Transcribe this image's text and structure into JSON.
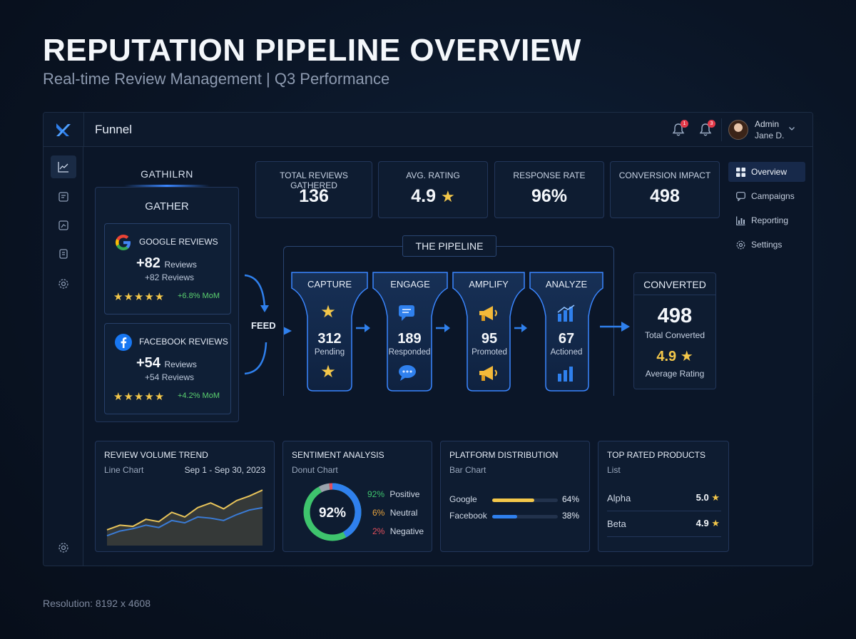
{
  "hero": {
    "title": "REPUTATION PIPELINE OVERVIEW",
    "subtitle": "Real-time Review Management | Q3 Performance"
  },
  "footer": {
    "resolution": "Resolution: 8192 x 4608"
  },
  "topbar": {
    "title": "Funnel",
    "notifications": [
      {
        "badge": "1"
      },
      {
        "badge": "3"
      }
    ],
    "user": {
      "name": "Admin",
      "subname": "Jane D."
    }
  },
  "kpis": [
    {
      "label": "TOTAL REVIEWS GATHERED",
      "value": "136"
    },
    {
      "label": "AVG. RATING",
      "value": "4.9"
    },
    {
      "label": "RESPONSE RATE",
      "value": "96%"
    },
    {
      "label": "CONVERSION IMPACT",
      "value": "498"
    }
  ],
  "gather": {
    "heading": "GATHILRN",
    "title": "GATHER",
    "sources": [
      {
        "name": "GOOGLE REVIEWS",
        "big": "+82",
        "big_unit": "Reviews",
        "small": "+82 Reviews",
        "stars": "★★★★★",
        "mom": "+6.8% MoM"
      },
      {
        "name": "FACEBOOK REVIEWS",
        "big": "+54",
        "big_unit": "Reviews",
        "small": "+54 Reviews",
        "stars": "★★★★★",
        "mom": "+4.2% MoM"
      }
    ],
    "feed_label": "FEED"
  },
  "pipeline": {
    "title": "THE PIPELINE",
    "stages": [
      {
        "label": "CAPTURE",
        "value": "312",
        "sub": "Pending",
        "icon": "star-icon"
      },
      {
        "label": "ENGAGE",
        "value": "189",
        "sub": "Responded",
        "icon": "chat-icon"
      },
      {
        "label": "AMPLIFY",
        "value": "95",
        "sub": "Promoted",
        "icon": "megaphone-icon"
      },
      {
        "label": "ANALYZE",
        "value": "67",
        "sub": "Actioned",
        "icon": "bar-chart-icon"
      }
    ]
  },
  "converted": {
    "title": "CONVERTED",
    "value": "498",
    "value_label": "Total Converted",
    "rating": "4.9",
    "rating_label": "Average Rating"
  },
  "right_nav": [
    {
      "label": "Overview",
      "icon": "grid-icon",
      "active": true
    },
    {
      "label": "Campaigns",
      "icon": "message-icon",
      "active": false
    },
    {
      "label": "Reporting",
      "icon": "chart-icon",
      "active": false
    },
    {
      "label": "Settings",
      "icon": "gear-icon",
      "active": false
    }
  ],
  "trend": {
    "title": "REVIEW VOLUME TREND",
    "subtitle": "Line Chart",
    "date_range": "Sep 1 - Sep 30, 2023"
  },
  "sentiment": {
    "title": "SENTIMENT ANALYSIS",
    "subtitle": "Donut Chart",
    "center_label": "92%",
    "items": [
      {
        "pct": "92%",
        "label": "Positive",
        "value": 92,
        "color": "#3ec46d"
      },
      {
        "pct": "6%",
        "label": "Neutral",
        "value": 6,
        "color": "#e8a33d"
      },
      {
        "pct": "2%",
        "label": "Negative",
        "value": 2,
        "color": "#e2505c"
      }
    ]
  },
  "platform": {
    "title": "PLATFORM DISTRIBUTION",
    "subtitle": "Bar Chart",
    "rows": [
      {
        "name": "Google",
        "pct": "64%",
        "value": 64,
        "color": "#f3c74a"
      },
      {
        "name": "Facebook",
        "pct": "38%",
        "value": 38,
        "color": "#2f80ed"
      }
    ]
  },
  "products": {
    "title": "TOP RATED PRODUCTS",
    "subtitle": "List",
    "items": [
      {
        "name": "Alpha",
        "rating": "5.0"
      },
      {
        "name": "Beta",
        "rating": "4.9"
      }
    ]
  },
  "chart_data": [
    {
      "type": "line",
      "series": [
        {
          "values": [
            22,
            30,
            28,
            40,
            36,
            52,
            44,
            60,
            68,
            58,
            72,
            80,
            90
          ]
        },
        {
          "values": [
            12,
            20,
            24,
            30,
            26,
            38,
            34,
            44,
            42,
            38,
            48,
            56,
            60
          ]
        }
      ],
      "colors": [
        "#e8c45a",
        "#3a7bd5"
      ],
      "ylim": [
        0,
        100
      ],
      "grid": false
    },
    {
      "type": "pie",
      "categories": [
        "Positive",
        "Neutral",
        "Negative"
      ],
      "values": [
        92,
        6,
        2
      ]
    },
    {
      "type": "bar",
      "categories": [
        "Google",
        "Facebook"
      ],
      "values": [
        64,
        38
      ],
      "ylim": [
        0,
        100
      ]
    }
  ]
}
